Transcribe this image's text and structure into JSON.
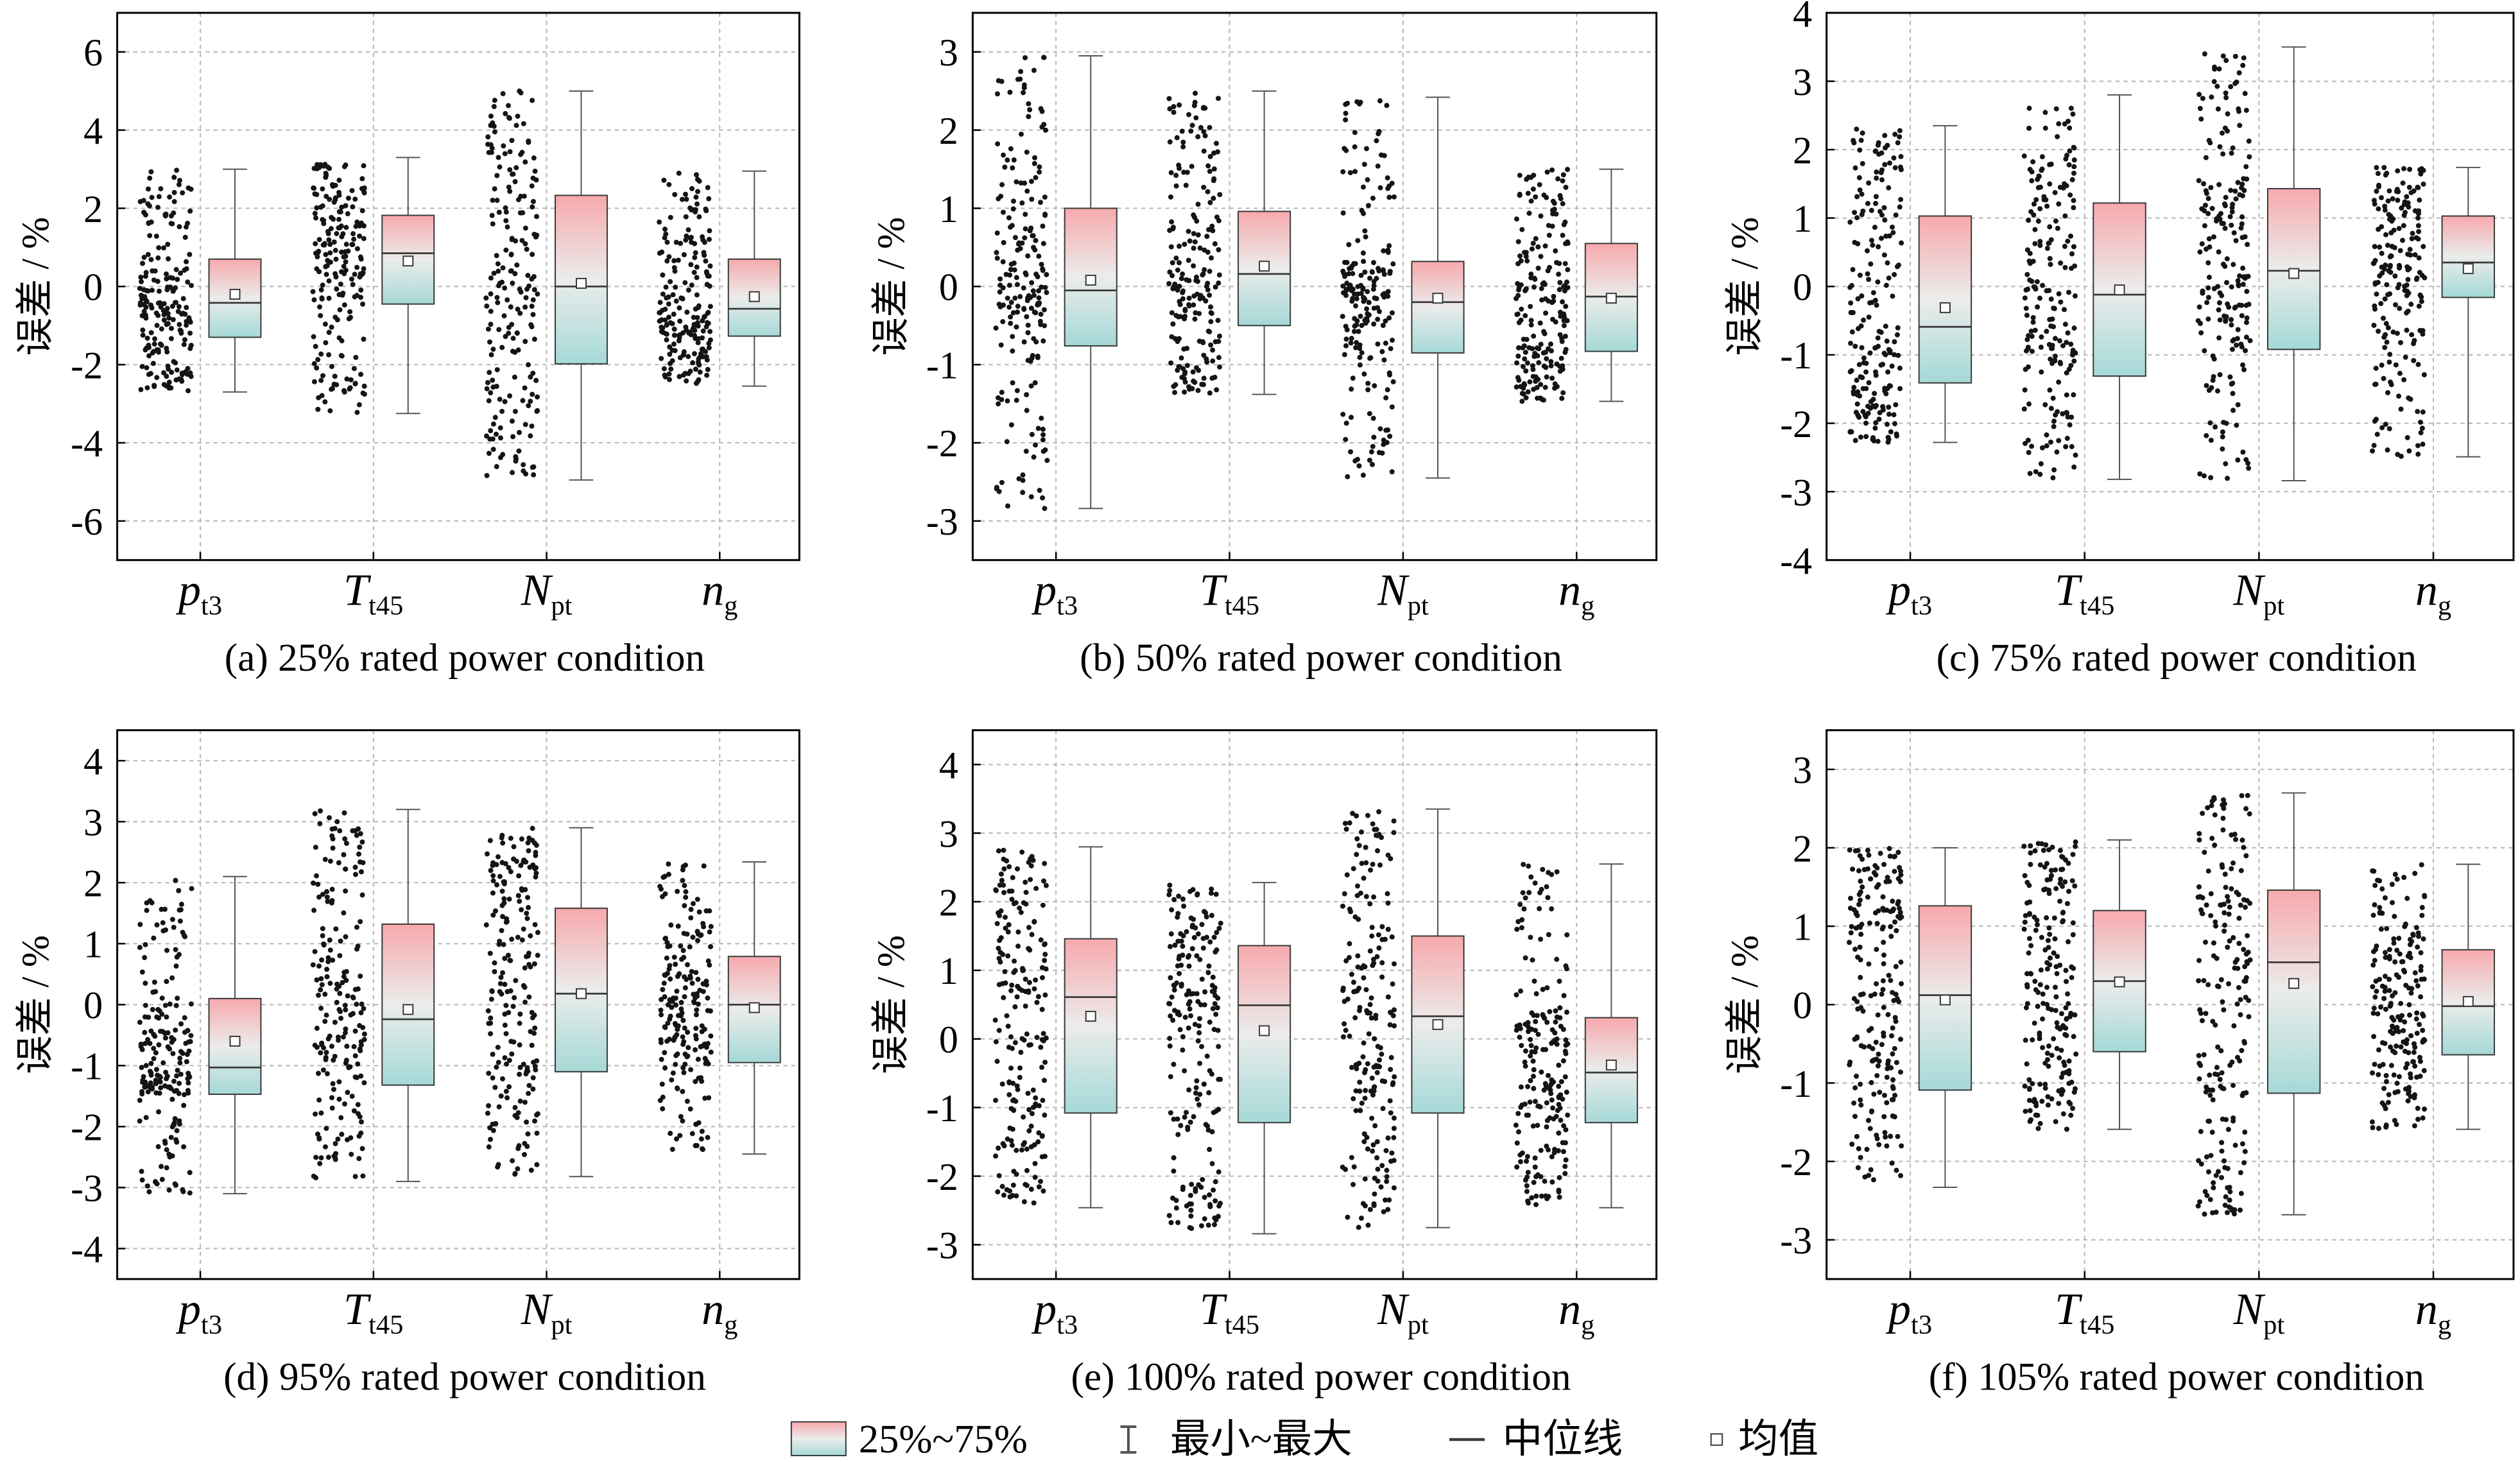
{
  "legend": {
    "position": "bottom-center",
    "items": [
      {
        "label": "25%~75%",
        "icon": "gradient-box-icon"
      },
      {
        "label": "最小~最大",
        "icon": "whisker-icon"
      },
      {
        "label": "中位线",
        "icon": "median-line-icon"
      },
      {
        "label": "均值",
        "icon": "mean-square-icon"
      }
    ]
  },
  "colors": {
    "box_top": "#f7a9ad",
    "box_mid": "#ebeceb",
    "box_bottom": "#a5d9d7",
    "box_edge": "#3a3a3a",
    "whisker": "#555555",
    "points": "#141414",
    "grid": "#b5b5b5"
  },
  "chart_data": [
    {
      "type": "box",
      "title": "(a) 25% rated power condition",
      "ylabel": "误差 / %",
      "ylim": [
        -7,
        7
      ],
      "yticks": [
        -6,
        -4,
        -2,
        0,
        2,
        4,
        6
      ],
      "grid": true,
      "show_points": true,
      "categories": [
        {
          "symbol": "p",
          "subscript": "t3"
        },
        {
          "symbol": "T",
          "subscript": "t45"
        },
        {
          "symbol": "N",
          "subscript": "pt"
        },
        {
          "symbol": "n",
          "subscript": "g"
        }
      ],
      "boxes": [
        {
          "min": -2.7,
          "q1": -1.3,
          "median": -0.42,
          "q3": 0.7,
          "max": 3.0,
          "mean": -0.2
        },
        {
          "min": -3.25,
          "q1": -0.45,
          "median": 0.85,
          "q3": 1.82,
          "max": 3.3,
          "mean": 0.65
        },
        {
          "min": -4.95,
          "q1": -1.98,
          "median": 0.0,
          "q3": 2.33,
          "max": 5.0,
          "mean": 0.08
        },
        {
          "min": -2.55,
          "q1": -1.27,
          "median": -0.57,
          "q3": 0.7,
          "max": 2.95,
          "mean": -0.26
        }
      ]
    },
    {
      "type": "box",
      "title": "(b) 50% rated power condition",
      "ylabel": "误差 / %",
      "ylim": [
        -3.5,
        3.5
      ],
      "yticks": [
        -3,
        -2,
        -1,
        0,
        1,
        2,
        3
      ],
      "grid": true,
      "show_points": true,
      "categories": [
        {
          "symbol": "p",
          "subscript": "t3"
        },
        {
          "symbol": "T",
          "subscript": "t45"
        },
        {
          "symbol": "N",
          "subscript": "pt"
        },
        {
          "symbol": "n",
          "subscript": "g"
        }
      ],
      "boxes": [
        {
          "min": -2.84,
          "q1": -0.76,
          "median": -0.05,
          "q3": 1.0,
          "max": 2.95,
          "mean": 0.08
        },
        {
          "min": -1.38,
          "q1": -0.5,
          "median": 0.16,
          "q3": 0.96,
          "max": 2.5,
          "mean": 0.26
        },
        {
          "min": -2.45,
          "q1": -0.85,
          "median": -0.2,
          "q3": 0.32,
          "max": 2.42,
          "mean": -0.15
        },
        {
          "min": -1.47,
          "q1": -0.83,
          "median": -0.13,
          "q3": 0.55,
          "max": 1.5,
          "mean": -0.15
        }
      ]
    },
    {
      "type": "box",
      "title": "(c) 75% rated power condition",
      "ylabel": "误差 / %",
      "ylim": [
        -4,
        4
      ],
      "yticks": [
        -4,
        -3,
        -2,
        -1,
        0,
        1,
        2,
        3,
        4
      ],
      "grid": true,
      "show_points": true,
      "categories": [
        {
          "symbol": "p",
          "subscript": "t3"
        },
        {
          "symbol": "T",
          "subscript": "t45"
        },
        {
          "symbol": "N",
          "subscript": "pt"
        },
        {
          "symbol": "n",
          "subscript": "g"
        }
      ],
      "boxes": [
        {
          "min": -2.28,
          "q1": -1.41,
          "median": -0.59,
          "q3": 1.03,
          "max": 2.35,
          "mean": -0.31
        },
        {
          "min": -2.82,
          "q1": -1.31,
          "median": -0.12,
          "q3": 1.22,
          "max": 2.8,
          "mean": -0.05
        },
        {
          "min": -2.84,
          "q1": -0.92,
          "median": 0.23,
          "q3": 1.43,
          "max": 3.5,
          "mean": 0.19
        },
        {
          "min": -2.49,
          "q1": -0.16,
          "median": 0.35,
          "q3": 1.03,
          "max": 1.74,
          "mean": 0.26
        }
      ]
    },
    {
      "type": "box",
      "title": "(d) 95% rated power condition",
      "ylabel": "误差 / %",
      "ylim": [
        -4.5,
        4.5
      ],
      "yticks": [
        -4,
        -3,
        -2,
        -1,
        0,
        1,
        2,
        3,
        4
      ],
      "grid": true,
      "show_points": true,
      "categories": [
        {
          "symbol": "p",
          "subscript": "t3"
        },
        {
          "symbol": "T",
          "subscript": "t45"
        },
        {
          "symbol": "N",
          "subscript": "pt"
        },
        {
          "symbol": "n",
          "subscript": "g"
        }
      ],
      "boxes": [
        {
          "min": -3.1,
          "q1": -1.47,
          "median": -1.03,
          "q3": 0.1,
          "max": 2.1,
          "mean": -0.6
        },
        {
          "min": -2.9,
          "q1": -1.32,
          "median": -0.24,
          "q3": 1.32,
          "max": 3.2,
          "mean": -0.08
        },
        {
          "min": -2.82,
          "q1": -1.1,
          "median": 0.18,
          "q3": 1.58,
          "max": 2.9,
          "mean": 0.18
        },
        {
          "min": -2.45,
          "q1": -0.95,
          "median": 0.0,
          "q3": 0.79,
          "max": 2.34,
          "mean": -0.05
        }
      ]
    },
    {
      "type": "box",
      "title": "(e) 100% rated power condition",
      "ylabel": "误差 / %",
      "ylim": [
        -3.5,
        4.5
      ],
      "yticks": [
        -3,
        -2,
        -1,
        0,
        1,
        2,
        3,
        4
      ],
      "grid": true,
      "show_points": true,
      "categories": [
        {
          "symbol": "p",
          "subscript": "t3"
        },
        {
          "symbol": "T",
          "subscript": "t45"
        },
        {
          "symbol": "N",
          "subscript": "pt"
        },
        {
          "symbol": "n",
          "subscript": "g"
        }
      ],
      "boxes": [
        {
          "min": -2.46,
          "q1": -1.08,
          "median": 0.61,
          "q3": 1.46,
          "max": 2.8,
          "mean": 0.33
        },
        {
          "min": -2.84,
          "q1": -1.22,
          "median": 0.49,
          "q3": 1.36,
          "max": 2.28,
          "mean": 0.12
        },
        {
          "min": -2.75,
          "q1": -1.08,
          "median": 0.33,
          "q3": 1.5,
          "max": 3.35,
          "mean": 0.21
        },
        {
          "min": -2.46,
          "q1": -1.22,
          "median": -0.49,
          "q3": 0.31,
          "max": 2.55,
          "mean": -0.38
        }
      ]
    },
    {
      "type": "box",
      "title": "(f) 105% rated power condition",
      "ylabel": "误差 / %",
      "ylim": [
        -3.5,
        3.5
      ],
      "yticks": [
        -3,
        -2,
        -1,
        0,
        1,
        2,
        3
      ],
      "grid": true,
      "show_points": true,
      "categories": [
        {
          "symbol": "p",
          "subscript": "t3"
        },
        {
          "symbol": "T",
          "subscript": "t45"
        },
        {
          "symbol": "N",
          "subscript": "pt"
        },
        {
          "symbol": "n",
          "subscript": "g"
        }
      ],
      "boxes": [
        {
          "min": -2.33,
          "q1": -1.09,
          "median": 0.12,
          "q3": 1.26,
          "max": 2.0,
          "mean": 0.06
        },
        {
          "min": -1.59,
          "q1": -0.6,
          "median": 0.3,
          "q3": 1.2,
          "max": 2.1,
          "mean": 0.29
        },
        {
          "min": -2.68,
          "q1": -1.13,
          "median": 0.54,
          "q3": 1.46,
          "max": 2.7,
          "mean": 0.27
        },
        {
          "min": -1.59,
          "q1": -0.64,
          "median": -0.02,
          "q3": 0.7,
          "max": 1.79,
          "mean": 0.04
        }
      ]
    }
  ]
}
